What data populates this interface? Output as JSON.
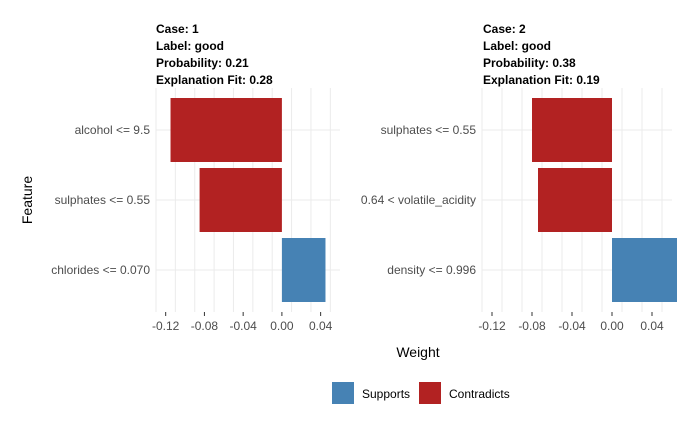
{
  "chart_data": {
    "type": "bar",
    "orientation": "horizontal",
    "xlabel": "Weight",
    "ylabel": "Feature",
    "xlim": [
      -0.13,
      0.06
    ],
    "xticks": [
      "-0.12",
      "-0.08",
      "-0.04",
      "0.00",
      "0.04"
    ],
    "xtick_values": [
      -0.12,
      -0.08,
      -0.04,
      0.0,
      0.04
    ],
    "legend": {
      "placement": "bottom",
      "entries": [
        {
          "label": "Supports",
          "color": "#4682B4"
        },
        {
          "label": "Contradicts",
          "color": "#B22222"
        }
      ]
    },
    "panels": [
      {
        "title_lines": [
          "Case: 1",
          "Label: good",
          "Probability: 0.21",
          "Explanation Fit: 0.28"
        ],
        "bars": [
          {
            "feature": "alcohol <= 9.5",
            "weight": -0.115,
            "type": "Contradicts"
          },
          {
            "feature": "sulphates <= 0.55",
            "weight": -0.085,
            "type": "Contradicts"
          },
          {
            "feature": "chlorides <= 0.070",
            "weight": 0.045,
            "type": "Supports"
          }
        ]
      },
      {
        "title_lines": [
          "Case: 2",
          "Label: good",
          "Probability: 0.38",
          "Explanation Fit: 0.19"
        ],
        "bars": [
          {
            "feature": "sulphates <= 0.55",
            "weight": -0.08,
            "type": "Contradicts"
          },
          {
            "feature": "0.64 < volatile_acidity",
            "weight": -0.074,
            "type": "Contradicts"
          },
          {
            "feature": "density <= 0.996",
            "weight": 0.065,
            "type": "Supports"
          }
        ]
      }
    ]
  }
}
